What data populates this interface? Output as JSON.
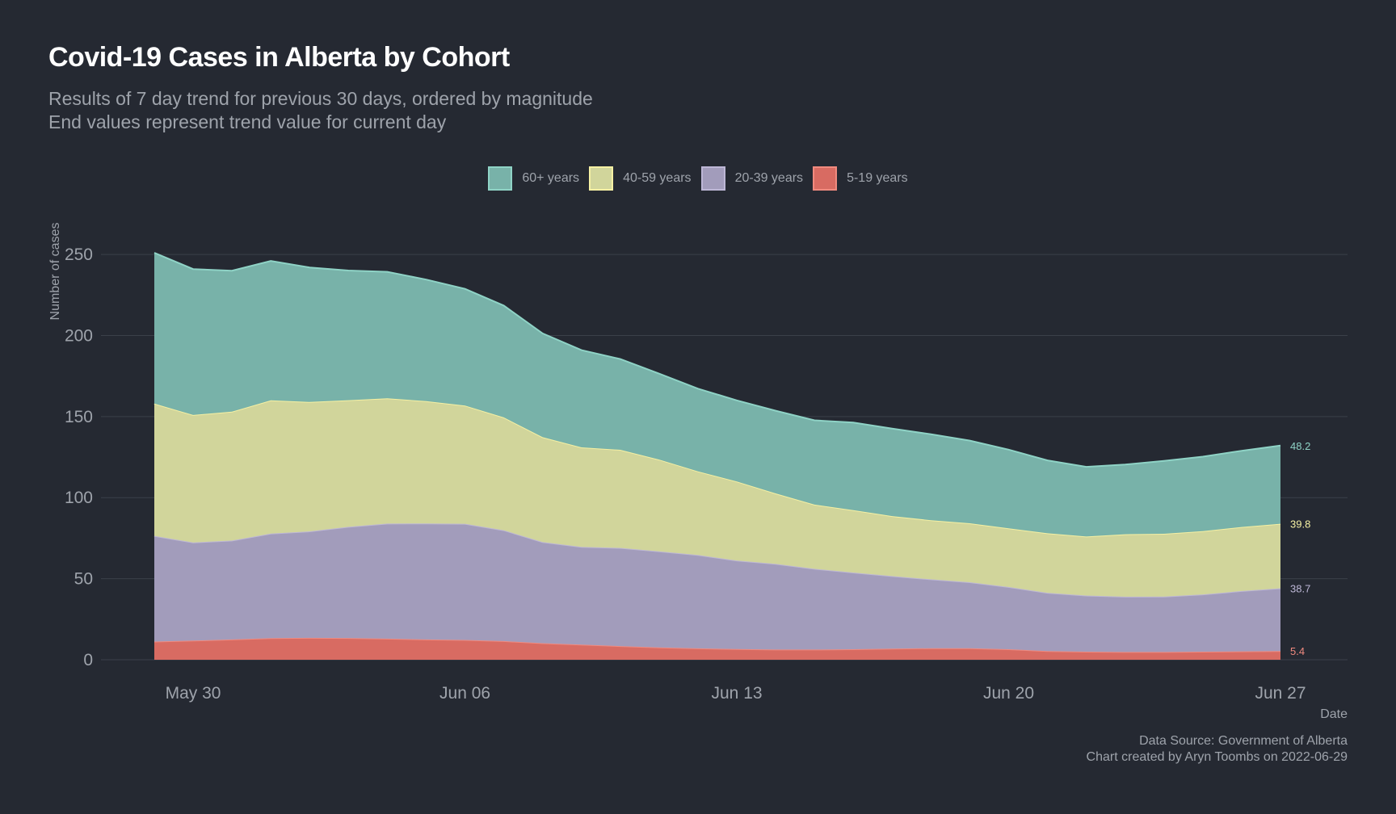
{
  "title": "Covid-19 Cases in Alberta by Cohort",
  "subtitle_lines": [
    "Results of 7 day trend for previous 30 days, ordered by magnitude",
    "End values represent trend value for current day"
  ],
  "caption_lines": [
    "Data Source: Government of Alberta",
    "Chart created by Aryn Toombs on 2022-06-29"
  ],
  "colors": {
    "background": "#252932",
    "grid": "#3b404a",
    "text": "#9ea3ab",
    "title": "#ffffff"
  },
  "chart_data": {
    "type": "area",
    "stacked": true,
    "xlabel": "Date",
    "ylabel": "Number of cases",
    "ylim": [
      0,
      265
    ],
    "yticks": [
      0,
      50,
      100,
      150,
      200,
      250
    ],
    "xticks": [
      {
        "label": "May 30",
        "date": "2022-05-30"
      },
      {
        "label": "Jun 06",
        "date": "2022-06-06"
      },
      {
        "label": "Jun 13",
        "date": "2022-06-13"
      },
      {
        "label": "Jun 20",
        "date": "2022-06-20"
      },
      {
        "label": "Jun 27",
        "date": "2022-06-27"
      }
    ],
    "x": [
      "2022-05-29",
      "2022-05-30",
      "2022-05-31",
      "2022-06-01",
      "2022-06-02",
      "2022-06-03",
      "2022-06-04",
      "2022-06-05",
      "2022-06-06",
      "2022-06-07",
      "2022-06-08",
      "2022-06-09",
      "2022-06-10",
      "2022-06-11",
      "2022-06-12",
      "2022-06-13",
      "2022-06-14",
      "2022-06-15",
      "2022-06-16",
      "2022-06-17",
      "2022-06-18",
      "2022-06-19",
      "2022-06-20",
      "2022-06-21",
      "2022-06-22",
      "2022-06-23",
      "2022-06-24",
      "2022-06-25",
      "2022-06-26",
      "2022-06-27"
    ],
    "legend_position": "top",
    "grid": true,
    "series": [
      {
        "name": "5-19 years",
        "fill": "#d86b62",
        "line": "#f08a7f",
        "end_label": "5.4",
        "values": [
          11.2,
          11.8,
          12.5,
          13.3,
          13.5,
          13.4,
          13.0,
          12.5,
          12.2,
          11.5,
          10.2,
          9.3,
          8.4,
          7.6,
          7.0,
          6.6,
          6.3,
          6.3,
          6.5,
          6.8,
          7.1,
          7.1,
          6.5,
          5.4,
          5.0,
          4.8,
          4.8,
          5.0,
          5.2,
          5.4
        ]
      },
      {
        "name": "20-39 years",
        "fill": "#a29cbb",
        "line": "#bdb7d6",
        "end_label": "38.7",
        "values": [
          65.2,
          60.6,
          61.0,
          64.5,
          65.7,
          68.6,
          71.0,
          71.6,
          71.7,
          68.4,
          62.4,
          60.3,
          60.6,
          59.3,
          57.6,
          54.6,
          52.9,
          49.8,
          47.3,
          44.8,
          42.5,
          40.7,
          38.4,
          35.9,
          34.6,
          34.1,
          34.2,
          35.3,
          37.2,
          38.7
        ]
      },
      {
        "name": "40-59 years",
        "fill": "#d1d59b",
        "line": "#f5f0a3",
        "end_label": "39.8",
        "values": [
          81.6,
          78.6,
          79.5,
          82.2,
          79.8,
          78.1,
          77.3,
          75.4,
          72.9,
          69.6,
          64.7,
          61.4,
          60.5,
          56.6,
          51.6,
          48.8,
          43.4,
          39.6,
          38.5,
          37.0,
          36.5,
          36.4,
          36.2,
          36.7,
          36.4,
          38.5,
          38.7,
          39.0,
          39.5,
          39.8
        ]
      },
      {
        "name": "60+ years",
        "fill": "#78b2a9",
        "line": "#8fd3c6",
        "end_label": "48.2",
        "values": [
          93.0,
          90.0,
          87.0,
          86.0,
          83.0,
          80.0,
          78.0,
          75.0,
          72.0,
          69.0,
          64.0,
          60.0,
          56.0,
          53.0,
          51.0,
          50.0,
          51.0,
          52.0,
          54.0,
          54.0,
          53.0,
          51.0,
          48.5,
          45.0,
          43.0,
          43.0,
          45.0,
          46.0,
          47.0,
          48.2
        ]
      }
    ]
  }
}
